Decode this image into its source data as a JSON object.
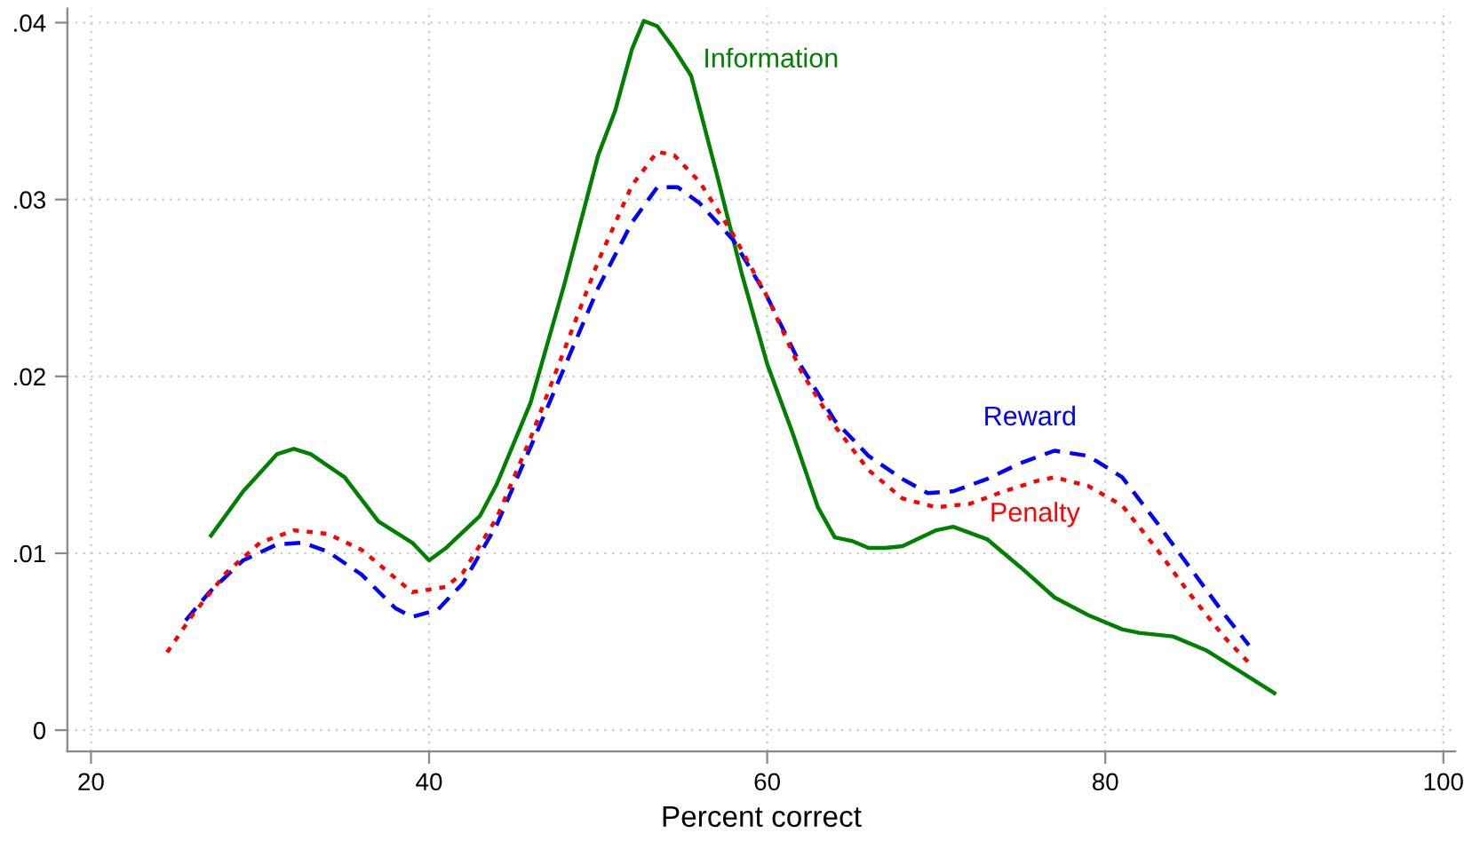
{
  "chart_data": {
    "type": "line",
    "xlabel": "Percent correct",
    "xlim": [
      18.6,
      100.7
    ],
    "xticks": [
      20,
      40,
      60,
      80,
      100
    ],
    "ylim": [
      -0.0012,
      0.0408
    ],
    "yticks": [
      {
        "value": 0,
        "label": "0"
      },
      {
        "value": 0.01,
        "label": ".01"
      },
      {
        "value": 0.02,
        "label": ".02"
      },
      {
        "value": 0.03,
        "label": ".03"
      },
      {
        "value": 0.04,
        "label": ".04"
      }
    ],
    "grid": true,
    "legend": false,
    "series": [
      {
        "name": "Information",
        "color": "#008000",
        "line_style": "solid",
        "x": [
          27.1,
          29,
          31,
          32,
          33,
          35,
          37,
          39,
          40,
          41,
          43,
          44,
          46,
          48,
          50,
          51,
          52,
          52.7,
          53.5,
          54.5,
          55.5,
          57,
          58.5,
          60,
          61.5,
          63,
          64,
          65,
          66,
          67,
          68,
          70,
          71,
          73,
          75,
          77,
          79,
          81,
          82,
          84,
          86,
          88,
          90
        ],
        "values": [
          0.011,
          0.0135,
          0.0156,
          0.0159,
          0.0156,
          0.0143,
          0.0118,
          0.0106,
          0.0096,
          0.0103,
          0.0121,
          0.0139,
          0.0185,
          0.0252,
          0.0325,
          0.035,
          0.0385,
          0.0401,
          0.0398,
          0.0385,
          0.037,
          0.0315,
          0.0258,
          0.0207,
          0.0168,
          0.0126,
          0.0109,
          0.0107,
          0.0103,
          0.0103,
          0.0104,
          0.0113,
          0.0115,
          0.0108,
          0.0092,
          0.0075,
          0.0065,
          0.0057,
          0.0055,
          0.0053,
          0.0045,
          0.0033,
          0.0021
        ]
      },
      {
        "name": "Reward",
        "color": "#0000ff",
        "line_style": "dashed",
        "x": [
          25.6,
          27,
          29,
          31,
          32.5,
          34,
          36,
          38,
          39,
          40.5,
          42,
          44,
          46,
          48,
          50,
          52,
          53.5,
          54.7,
          56,
          58,
          60,
          62,
          64,
          66,
          68,
          69.5,
          71,
          73,
          75,
          77,
          79,
          81,
          83,
          85,
          87,
          88.5
        ],
        "values": [
          0.0062,
          0.0078,
          0.0096,
          0.0105,
          0.0106,
          0.0101,
          0.0088,
          0.0069,
          0.0064,
          0.0068,
          0.0083,
          0.0116,
          0.016,
          0.0205,
          0.025,
          0.0287,
          0.0307,
          0.0307,
          0.0298,
          0.0277,
          0.0245,
          0.0206,
          0.0175,
          0.0155,
          0.0142,
          0.0134,
          0.0135,
          0.0142,
          0.0151,
          0.0158,
          0.0155,
          0.0143,
          0.0118,
          0.0092,
          0.0066,
          0.0048
        ]
      },
      {
        "name": "Penalty",
        "color": "#ff0000",
        "line_style": "dotted",
        "x": [
          24.5,
          26,
          28,
          30,
          32,
          34,
          36,
          38,
          39,
          41,
          42,
          44,
          46,
          48,
          50,
          52,
          53.5,
          54.5,
          56,
          58,
          60,
          62,
          64,
          66,
          68,
          70,
          72,
          74,
          76,
          77,
          79,
          81,
          83,
          85,
          87,
          88.5
        ],
        "values": [
          0.0044,
          0.0065,
          0.0089,
          0.0106,
          0.0113,
          0.0111,
          0.0102,
          0.0086,
          0.0078,
          0.0081,
          0.0089,
          0.012,
          0.0165,
          0.0215,
          0.0265,
          0.0308,
          0.0327,
          0.0325,
          0.031,
          0.028,
          0.0245,
          0.0203,
          0.0172,
          0.0147,
          0.0131,
          0.0126,
          0.0128,
          0.0135,
          0.0141,
          0.0143,
          0.0138,
          0.0127,
          0.0103,
          0.0077,
          0.0053,
          0.0038
        ]
      }
    ]
  }
}
